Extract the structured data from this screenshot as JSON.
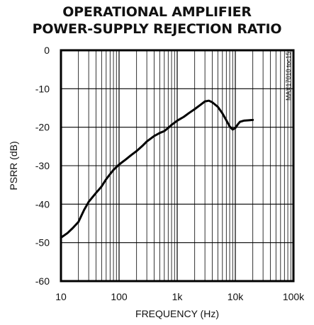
{
  "chart_data": {
    "type": "line",
    "title": "OPERATIONAL AMPLIFIER",
    "subtitle": "POWER-SUPPLY REJECTION RATIO",
    "xlabel": "FREQUENCY (Hz)",
    "ylabel": "PSRR (dB)",
    "x_scale": "log",
    "xlim": [
      10,
      100000
    ],
    "ylim": [
      -60,
      0
    ],
    "x_ticks": [
      {
        "value": 10,
        "label": "10"
      },
      {
        "value": 100,
        "label": "100"
      },
      {
        "value": 1000,
        "label": "1k"
      },
      {
        "value": 10000,
        "label": "10k"
      },
      {
        "value": 100000,
        "label": "100k"
      }
    ],
    "y_ticks": [
      {
        "value": 0,
        "label": "0"
      },
      {
        "value": -10,
        "label": "-10"
      },
      {
        "value": -20,
        "label": "-20"
      },
      {
        "value": -30,
        "label": "-30"
      },
      {
        "value": -40,
        "label": "-40"
      },
      {
        "value": -50,
        "label": "-50"
      },
      {
        "value": -60,
        "label": "-60"
      }
    ],
    "grid": true,
    "annotation": "MAX17010 toc15",
    "series": [
      {
        "x": [
          10,
          13,
          16,
          20,
          25,
          30,
          40,
          50,
          60,
          70,
          80,
          100,
          130,
          160,
          200,
          250,
          300,
          400,
          500,
          600,
          700,
          800,
          1000,
          1300,
          1600,
          2000,
          2500,
          3000,
          3500,
          4000,
          5000,
          6000,
          7000,
          8000,
          9000,
          10000,
          11000,
          12000,
          14000,
          17000,
          20000
        ],
        "y": [
          -48.7,
          -47.5,
          -46.2,
          -44.6,
          -41.5,
          -39.4,
          -37.1,
          -35.4,
          -33.5,
          -32.2,
          -31.1,
          -29.7,
          -28.4,
          -27.3,
          -26.2,
          -24.9,
          -23.7,
          -22.3,
          -21.5,
          -21.0,
          -20.2,
          -19.4,
          -18.3,
          -17.3,
          -16.3,
          -15.3,
          -14.2,
          -13.3,
          -13.1,
          -13.5,
          -14.7,
          -16.4,
          -18.2,
          -19.8,
          -20.6,
          -20.2,
          -19.3,
          -18.6,
          -18.3,
          -18.2,
          -18.1
        ]
      }
    ]
  }
}
